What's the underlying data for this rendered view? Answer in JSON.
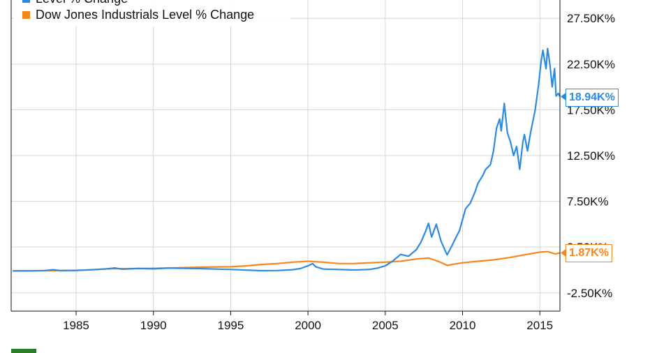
{
  "chart_data": {
    "type": "line",
    "title": "",
    "xlabel": "",
    "ylabel": "",
    "xlim": [
      1980.8,
      2016.3
    ],
    "ylim": [
      -4500,
      29500
    ],
    "x_ticks": [
      {
        "value": 1985,
        "label": "1985"
      },
      {
        "value": 1990,
        "label": "1990"
      },
      {
        "value": 1995,
        "label": "1995"
      },
      {
        "value": 2000,
        "label": "2000"
      },
      {
        "value": 2005,
        "label": "2005"
      },
      {
        "value": 2010,
        "label": "2010"
      },
      {
        "value": 2015,
        "label": "2015"
      }
    ],
    "y_ticks": [
      {
        "value": 27500,
        "label": "27.50K%"
      },
      {
        "value": 22500,
        "label": "22.50K%"
      },
      {
        "value": 17500,
        "label": "17.50K%"
      },
      {
        "value": 12500,
        "label": "12.50K%"
      },
      {
        "value": 7500,
        "label": "7.50K%"
      },
      {
        "value": 2500,
        "label": "2.50K%"
      },
      {
        "value": -2500,
        "label": "-2.50K%"
      }
    ],
    "grid": true,
    "legend_position": "top-left",
    "series": [
      {
        "name": "",
        "color": "#2b8be0",
        "end_label": "18.94K%",
        "points": [
          [
            1980.9,
            -100
          ],
          [
            1982,
            -100
          ],
          [
            1983,
            -60
          ],
          [
            1983.5,
            30
          ],
          [
            1984,
            -80
          ],
          [
            1985,
            -50
          ],
          [
            1986,
            20
          ],
          [
            1987,
            120
          ],
          [
            1987.5,
            220
          ],
          [
            1988,
            80
          ],
          [
            1989,
            160
          ],
          [
            1990,
            120
          ],
          [
            1991,
            200
          ],
          [
            1992,
            180
          ],
          [
            1993,
            150
          ],
          [
            1994,
            100
          ],
          [
            1995,
            60
          ],
          [
            1996,
            -20
          ],
          [
            1997,
            -80
          ],
          [
            1998,
            -60
          ],
          [
            1999,
            30
          ],
          [
            1999.5,
            150
          ],
          [
            2000,
            450
          ],
          [
            2000.3,
            700
          ],
          [
            2000.5,
            350
          ],
          [
            2001,
            100
          ],
          [
            2002,
            50
          ],
          [
            2003,
            0
          ],
          [
            2004,
            60
          ],
          [
            2004.5,
            200
          ],
          [
            2005,
            450
          ],
          [
            2005.5,
            1000
          ],
          [
            2006,
            1700
          ],
          [
            2006.5,
            1500
          ],
          [
            2007,
            2200
          ],
          [
            2007.3,
            3000
          ],
          [
            2007.6,
            4200
          ],
          [
            2007.8,
            5100
          ],
          [
            2008,
            3600
          ],
          [
            2008.3,
            5000
          ],
          [
            2008.6,
            3200
          ],
          [
            2008.9,
            2000
          ],
          [
            2009,
            1650
          ],
          [
            2009.3,
            2600
          ],
          [
            2009.5,
            3300
          ],
          [
            2009.8,
            4300
          ],
          [
            2010,
            5500
          ],
          [
            2010.2,
            6700
          ],
          [
            2010.5,
            7300
          ],
          [
            2010.8,
            8500
          ],
          [
            2011,
            9500
          ],
          [
            2011.3,
            10300
          ],
          [
            2011.5,
            11000
          ],
          [
            2011.8,
            11500
          ],
          [
            2012,
            13000
          ],
          [
            2012.2,
            15500
          ],
          [
            2012.4,
            16500
          ],
          [
            2012.5,
            15200
          ],
          [
            2012.7,
            18200
          ],
          [
            2012.9,
            15000
          ],
          [
            2013.1,
            14000
          ],
          [
            2013.3,
            12500
          ],
          [
            2013.5,
            13500
          ],
          [
            2013.7,
            11000
          ],
          [
            2013.9,
            14000
          ],
          [
            2014,
            14800
          ],
          [
            2014.2,
            13000
          ],
          [
            2014.4,
            15000
          ],
          [
            2014.7,
            17500
          ],
          [
            2014.9,
            20000
          ],
          [
            2015.1,
            23000
          ],
          [
            2015.2,
            24000
          ],
          [
            2015.4,
            22000
          ],
          [
            2015.5,
            24200
          ],
          [
            2015.65,
            22500
          ],
          [
            2015.8,
            20000
          ],
          [
            2015.95,
            22000
          ],
          [
            2016.05,
            19000
          ],
          [
            2016.2,
            19300
          ],
          [
            2016.3,
            18940
          ]
        ]
      },
      {
        "name": "Dow Jones Industrials Level % Change",
        "color": "#f7861c",
        "end_label": "1.87K%",
        "points": [
          [
            1980.9,
            -100
          ],
          [
            1983,
            -80
          ],
          [
            1985,
            -50
          ],
          [
            1986,
            20
          ],
          [
            1987,
            120
          ],
          [
            1988,
            140
          ],
          [
            1989,
            160
          ],
          [
            1990,
            180
          ],
          [
            1991,
            220
          ],
          [
            1992,
            260
          ],
          [
            1993,
            300
          ],
          [
            1994,
            330
          ],
          [
            1995,
            350
          ],
          [
            1996,
            450
          ],
          [
            1997,
            600
          ],
          [
            1998,
            700
          ],
          [
            1999,
            850
          ],
          [
            2000,
            950
          ],
          [
            2001,
            850
          ],
          [
            2002,
            700
          ],
          [
            2003,
            700
          ],
          [
            2004,
            780
          ],
          [
            2005,
            850
          ],
          [
            2006,
            950
          ],
          [
            2007,
            1200
          ],
          [
            2007.8,
            1300
          ],
          [
            2008.5,
            900
          ],
          [
            2009,
            500
          ],
          [
            2009.5,
            650
          ],
          [
            2010,
            780
          ],
          [
            2011,
            950
          ],
          [
            2012,
            1100
          ],
          [
            2013,
            1350
          ],
          [
            2014,
            1650
          ],
          [
            2015,
            1950
          ],
          [
            2015.5,
            2000
          ],
          [
            2016,
            1750
          ],
          [
            2016.3,
            1870
          ]
        ]
      }
    ]
  },
  "legend": {
    "cut_off_text": "Level % Change",
    "visible_text": "Dow Jones Industrials Level % Change"
  },
  "colors": {
    "grid": "#d6d6d6",
    "axis": "#111111",
    "blue": "#2b8be0",
    "orange": "#f7861c",
    "text": "#111111"
  }
}
